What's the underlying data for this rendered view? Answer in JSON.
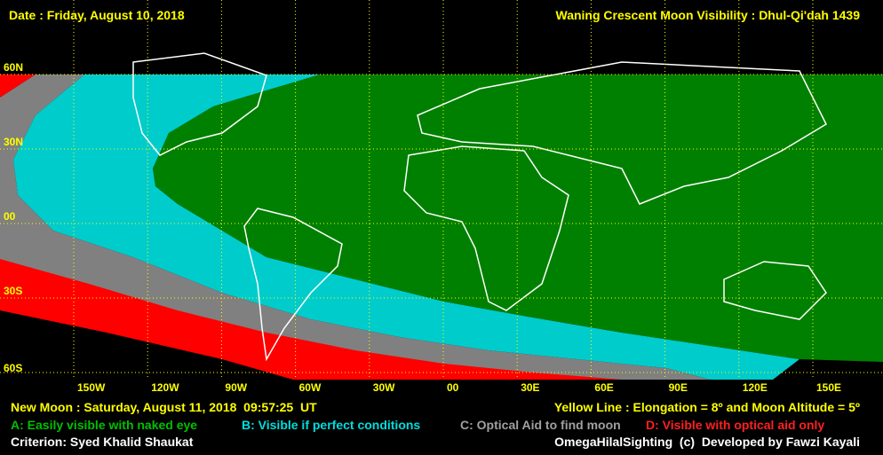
{
  "header": {
    "date": "Date : Friday, August 10, 2018",
    "title": "Waning Crescent Moon Visibility : Dhul-Qi'dah 1439"
  },
  "map": {
    "lat_labels": [
      "60N",
      "30N",
      "00",
      "30S",
      "60S"
    ],
    "lon_labels": [
      "150W",
      "120W",
      "90W",
      "60W",
      "30W",
      "00",
      "30E",
      "60E",
      "90E",
      "120E",
      "150E"
    ]
  },
  "footer": {
    "new_moon": "New Moon : Saturday, August 11, 2018  09:57:25  UT",
    "yellow_line": "Yellow Line : Elongation = 8º and Moon Altitude = 5º",
    "criterion": "Criterion: Syed Khalid Shaukat",
    "credit": "OmegaHilalSighting  (c)  Developed by Fawzi Kayali"
  },
  "legend": [
    {
      "label": "A: Easily visible with naked eye"
    },
    {
      "label": "B: Visible if perfect conditions"
    },
    {
      "label": "C: Optical Aid to find moon"
    },
    {
      "label": "D: Visible with optical aid only"
    }
  ]
}
